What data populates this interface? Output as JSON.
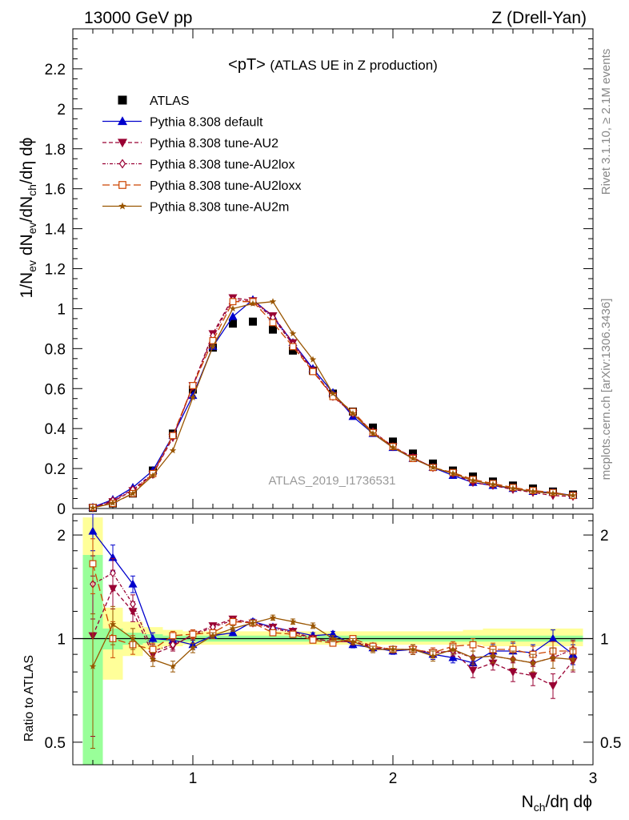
{
  "header": {
    "left": "13000 GeV pp",
    "right": "Z (Drell-Yan)"
  },
  "side_labels": {
    "rivet": "Rivet 3.1.10, ≥ 2.1M events",
    "mcplots": "mcplots.cern.ch [arXiv:1306.3436]"
  },
  "chart_data": [
    {
      "type": "scatter",
      "title": "<pT> (ATLAS UE in Z production)",
      "title_main": "<pT>",
      "title_rest": "(ATLAS UE in Z production)",
      "watermark": "ATLAS_2019_I1736531",
      "ylabel": "1/N_ev dN_ev/dN_ch/dη dϕ",
      "xlim": [
        0.4,
        3.0
      ],
      "ylim": [
        0,
        2.4
      ],
      "yticks": [
        0,
        0.2,
        0.4,
        0.6,
        0.8,
        1,
        1.2,
        1.4,
        1.6,
        1.8,
        2,
        2.2
      ],
      "ytick_labels": [
        "0",
        "0.2",
        "0.4",
        "0.6",
        "0.8",
        "1",
        "1.2",
        "1.4",
        "1.6",
        "1.8",
        "2",
        "2.2"
      ],
      "legend_position": "top-left",
      "x": [
        0.5,
        0.6,
        0.7,
        0.8,
        0.9,
        1.0,
        1.1,
        1.2,
        1.3,
        1.4,
        1.5,
        1.6,
        1.7,
        1.8,
        1.9,
        2.0,
        2.1,
        2.2,
        2.3,
        2.4,
        2.5,
        2.6,
        2.7,
        2.8,
        2.9
      ],
      "series": [
        {
          "name": "ATLAS",
          "color": "#000000",
          "marker": "square-filled",
          "line": "none",
          "values": [
            0.003,
            0.025,
            0.075,
            0.19,
            0.375,
            0.595,
            0.805,
            0.925,
            0.935,
            0.895,
            0.79,
            0.69,
            0.575,
            0.485,
            0.405,
            0.335,
            0.275,
            0.225,
            0.19,
            0.16,
            0.135,
            0.115,
            0.1,
            0.085,
            0.07
          ]
        },
        {
          "name": "Pythia 8.308 default",
          "color": "#0000cc",
          "marker": "triangle-up-filled",
          "line": "solid",
          "values": [
            0.006,
            0.045,
            0.105,
            0.19,
            0.365,
            0.565,
            0.81,
            0.96,
            1.045,
            0.96,
            0.83,
            0.7,
            0.58,
            0.46,
            0.375,
            0.305,
            0.25,
            0.205,
            0.165,
            0.13,
            0.115,
            0.1,
            0.085,
            0.08,
            0.065
          ]
        },
        {
          "name": "Pythia 8.308 tune-AU2",
          "color": "#990033",
          "marker": "triangle-down-filled",
          "line": "dashed",
          "values": [
            0.003,
            0.035,
            0.09,
            0.17,
            0.355,
            0.615,
            0.875,
            1.055,
            1.04,
            0.965,
            0.83,
            0.69,
            0.565,
            0.475,
            0.38,
            0.31,
            0.255,
            0.205,
            0.175,
            0.13,
            0.115,
            0.095,
            0.08,
            0.065,
            0.06
          ]
        },
        {
          "name": "Pythia 8.308 tune-AU2lox",
          "color": "#990033",
          "marker": "diamond-open",
          "line": "dashdot",
          "values": [
            0.004,
            0.04,
            0.095,
            0.175,
            0.36,
            0.61,
            0.865,
            1.045,
            1.035,
            0.955,
            0.82,
            0.69,
            0.56,
            0.475,
            0.385,
            0.31,
            0.255,
            0.205,
            0.175,
            0.14,
            0.12,
            0.1,
            0.085,
            0.075,
            0.065
          ]
        },
        {
          "name": "Pythia 8.308 tune-AU2loxx",
          "color": "#cc4400",
          "marker": "square-open",
          "line": "longdash",
          "values": [
            0.005,
            0.025,
            0.075,
            0.175,
            0.365,
            0.615,
            0.84,
            1.035,
            1.035,
            0.93,
            0.81,
            0.685,
            0.56,
            0.485,
            0.38,
            0.31,
            0.25,
            0.205,
            0.18,
            0.145,
            0.125,
            0.105,
            0.09,
            0.08,
            0.065
          ]
        },
        {
          "name": "Pythia 8.308 tune-AU2m",
          "color": "#995500",
          "marker": "star-filled",
          "line": "solid",
          "values": [
            0.003,
            0.027,
            0.075,
            0.165,
            0.29,
            0.555,
            0.81,
            1.0,
            1.025,
            1.035,
            0.875,
            0.745,
            0.575,
            0.475,
            0.375,
            0.305,
            0.25,
            0.205,
            0.175,
            0.14,
            0.12,
            0.1,
            0.085,
            0.075,
            0.065
          ]
        }
      ]
    },
    {
      "type": "scatter",
      "ylabel": "Ratio to ATLAS",
      "xlabel": "N_ch/dη dϕ",
      "xlim": [
        0.4,
        3.0
      ],
      "ylim": [
        0.43,
        2.3
      ],
      "log_y": true,
      "xticks": [
        1,
        2,
        3
      ],
      "xtick_labels": [
        "1",
        "2",
        "3"
      ],
      "yticks": [
        0.5,
        1,
        2
      ],
      "ytick_labels": [
        "0.5",
        "1",
        "2"
      ],
      "reference_line": 1,
      "band_x": [
        0.45,
        0.55,
        0.65,
        0.75,
        0.85,
        0.95,
        1.05,
        1.15,
        1.25,
        1.35,
        1.45,
        1.55,
        1.65,
        1.75,
        1.85,
        1.95,
        2.05,
        2.15,
        2.25,
        2.35,
        2.45,
        2.55,
        2.65,
        2.75,
        2.85,
        2.95
      ],
      "band_stat_low": [
        0.43,
        0.93,
        0.96,
        0.97,
        0.98,
        0.98,
        0.98,
        0.98,
        0.98,
        0.98,
        0.98,
        0.98,
        0.98,
        0.98,
        0.98,
        0.98,
        0.98,
        0.98,
        0.98,
        0.98,
        0.98,
        0.98,
        0.98,
        0.98,
        0.98
      ],
      "band_stat_high": [
        1.75,
        1.07,
        1.04,
        1.03,
        1.02,
        1.02,
        1.02,
        1.02,
        1.02,
        1.02,
        1.02,
        1.02,
        1.02,
        1.02,
        1.02,
        1.02,
        1.02,
        1.02,
        1.02,
        1.02,
        1.02,
        1.02,
        1.02,
        1.02,
        1.02
      ],
      "band_total_low": [
        0.43,
        0.76,
        0.89,
        0.93,
        0.95,
        0.96,
        0.96,
        0.96,
        0.96,
        0.96,
        0.96,
        0.96,
        0.96,
        0.96,
        0.96,
        0.96,
        0.96,
        0.96,
        0.96,
        0.96,
        0.95,
        0.95,
        0.95,
        0.95,
        0.95
      ],
      "band_total_high": [
        2.25,
        1.23,
        1.12,
        1.08,
        1.06,
        1.05,
        1.05,
        1.05,
        1.05,
        1.05,
        1.05,
        1.05,
        1.05,
        1.05,
        1.05,
        1.05,
        1.05,
        1.05,
        1.05,
        1.06,
        1.07,
        1.07,
        1.07,
        1.07,
        1.07
      ],
      "x": [
        0.5,
        0.6,
        0.7,
        0.8,
        0.9,
        1.0,
        1.1,
        1.2,
        1.3,
        1.4,
        1.5,
        1.6,
        1.7,
        1.8,
        1.9,
        2.0,
        2.1,
        2.2,
        2.3,
        2.4,
        2.5,
        2.6,
        2.7,
        2.8,
        2.9
      ],
      "series": [
        {
          "name": "Pythia 8.308 default",
          "color": "#0000cc",
          "marker": "triangle-up-filled",
          "line": "solid",
          "values": [
            2.05,
            1.72,
            1.44,
            1.0,
            0.99,
            0.96,
            1.02,
            1.04,
            1.12,
            1.08,
            1.05,
            1.02,
            1.03,
            0.96,
            0.94,
            0.92,
            0.93,
            0.9,
            0.88,
            0.85,
            0.92,
            0.92,
            0.91,
            1.0,
            0.9
          ],
          "errors": [
            0.25,
            0.15,
            0.08,
            0.04,
            0.03,
            0.03,
            0.02,
            0.02,
            0.02,
            0.02,
            0.02,
            0.02,
            0.02,
            0.02,
            0.02,
            0.02,
            0.03,
            0.03,
            0.03,
            0.04,
            0.04,
            0.05,
            0.05,
            0.06,
            0.06
          ]
        },
        {
          "name": "Pythia 8.308 tune-AU2",
          "color": "#990033",
          "marker": "triangle-down-filled",
          "line": "dashed",
          "values": [
            1.02,
            1.4,
            1.2,
            0.9,
            0.95,
            1.03,
            1.09,
            1.14,
            1.11,
            1.08,
            1.05,
            1.0,
            0.98,
            0.98,
            0.94,
            0.93,
            0.93,
            0.91,
            0.92,
            0.81,
            0.85,
            0.8,
            0.78,
            0.73,
            0.86
          ],
          "errors": [
            0.5,
            0.18,
            0.08,
            0.04,
            0.03,
            0.03,
            0.02,
            0.02,
            0.02,
            0.02,
            0.02,
            0.02,
            0.02,
            0.02,
            0.02,
            0.02,
            0.03,
            0.03,
            0.03,
            0.04,
            0.04,
            0.05,
            0.05,
            0.06,
            0.06
          ]
        },
        {
          "name": "Pythia 8.308 tune-AU2lox",
          "color": "#990033",
          "marker": "diamond-open",
          "line": "dashdot",
          "values": [
            1.44,
            1.55,
            1.26,
            0.92,
            0.96,
            1.02,
            1.08,
            1.13,
            1.11,
            1.07,
            1.04,
            1.0,
            0.98,
            0.98,
            0.95,
            0.93,
            0.93,
            0.91,
            0.92,
            0.88,
            0.89,
            0.87,
            0.85,
            0.88,
            0.93
          ],
          "errors": [
            0.3,
            0.16,
            0.08,
            0.04,
            0.03,
            0.03,
            0.02,
            0.02,
            0.02,
            0.02,
            0.02,
            0.02,
            0.02,
            0.02,
            0.02,
            0.02,
            0.03,
            0.03,
            0.03,
            0.04,
            0.04,
            0.05,
            0.05,
            0.06,
            0.06
          ]
        },
        {
          "name": "Pythia 8.308 tune-AU2loxx",
          "color": "#cc4400",
          "marker": "square-open",
          "line": "longdash",
          "values": [
            1.65,
            1.0,
            0.96,
            0.93,
            1.02,
            1.03,
            1.04,
            1.12,
            1.11,
            1.04,
            1.03,
            0.99,
            0.97,
            1.0,
            0.95,
            0.93,
            0.93,
            0.91,
            0.95,
            0.96,
            0.93,
            0.93,
            0.9,
            0.92,
            0.92
          ],
          "errors": [
            0.3,
            0.12,
            0.06,
            0.04,
            0.03,
            0.03,
            0.02,
            0.02,
            0.02,
            0.02,
            0.02,
            0.02,
            0.02,
            0.02,
            0.02,
            0.02,
            0.03,
            0.03,
            0.03,
            0.04,
            0.04,
            0.05,
            0.05,
            0.06,
            0.06
          ]
        },
        {
          "name": "Pythia 8.308 tune-AU2m",
          "color": "#995500",
          "marker": "star-filled",
          "line": "solid",
          "values": [
            0.83,
            1.1,
            1.0,
            0.87,
            0.83,
            0.94,
            1.02,
            1.07,
            1.11,
            1.15,
            1.12,
            1.09,
            1.0,
            0.98,
            0.93,
            0.93,
            0.93,
            0.89,
            0.93,
            0.88,
            0.89,
            0.87,
            0.85,
            0.88,
            0.87
          ],
          "errors": [
            0.35,
            0.14,
            0.07,
            0.04,
            0.03,
            0.03,
            0.02,
            0.02,
            0.02,
            0.02,
            0.02,
            0.02,
            0.02,
            0.02,
            0.02,
            0.02,
            0.03,
            0.03,
            0.03,
            0.04,
            0.04,
            0.05,
            0.05,
            0.06,
            0.06
          ]
        }
      ]
    }
  ]
}
